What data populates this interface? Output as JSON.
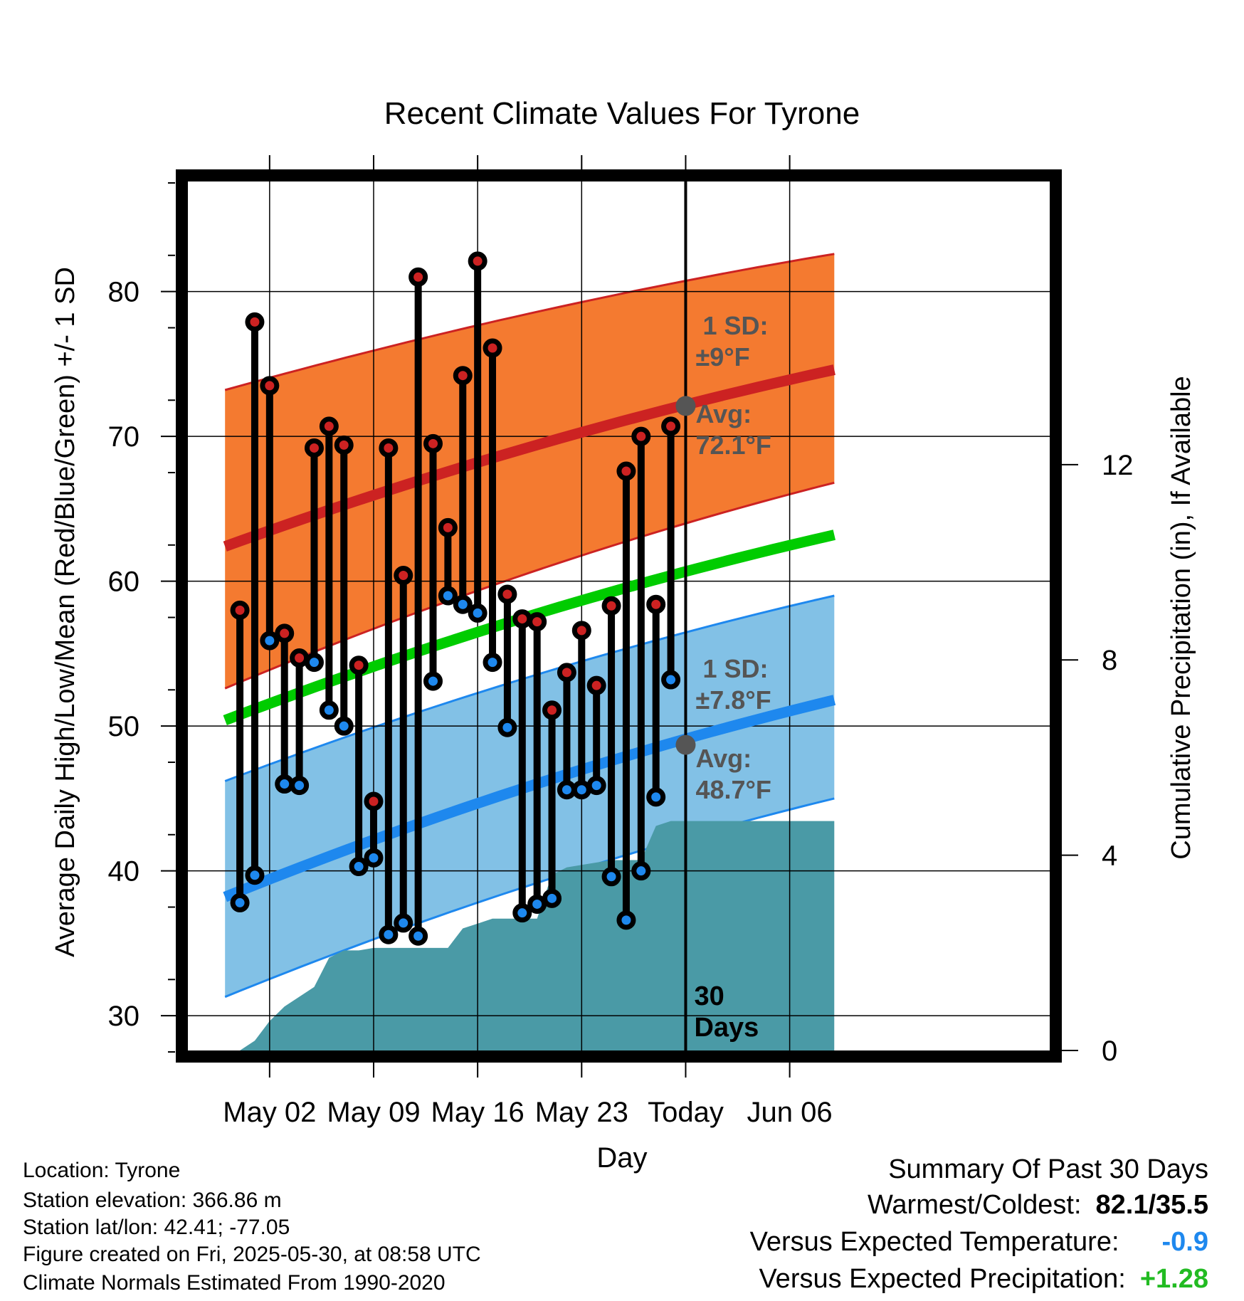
{
  "chart_data": {
    "type": "line",
    "title": "Recent Climate Values For Tyrone",
    "xlabel": "Day",
    "ylabel_left": "Average Daily High/Low/Mean (Red/Blue/Green) +/- 1 SD",
    "ylabel_right": "Cumulative Precipitation (in), If Available",
    "x_range": [
      -3.5,
      54.5
    ],
    "x_ticks": [
      {
        "day": 2,
        "label": "May 02"
      },
      {
        "day": 9,
        "label": "May 09"
      },
      {
        "day": 16,
        "label": "May 16"
      },
      {
        "day": 23,
        "label": "May 23"
      },
      {
        "day": 30,
        "label": "Today"
      },
      {
        "day": 37,
        "label": "Jun 06"
      }
    ],
    "y_left": {
      "min": 27.6,
      "max": 87.6,
      "ticks": [
        30,
        40,
        50,
        60,
        70,
        80
      ]
    },
    "y_right": {
      "min": 0,
      "max": 17.8,
      "ticks": [
        0,
        4,
        8,
        12
      ]
    },
    "today_day": 30,
    "days_label": "30\nDays",
    "normals": {
      "x_start": -1,
      "x_end": 40,
      "high_avg": [
        62.4,
        74.6
      ],
      "high_upper": [
        73.2,
        82.6
      ],
      "high_lower": [
        52.6,
        66.8
      ],
      "mean_avg": [
        50.4,
        63.2
      ],
      "low_avg": [
        38.2,
        51.8
      ],
      "low_upper": [
        46.2,
        59.0
      ],
      "low_lower": [
        31.3,
        45.0
      ]
    },
    "high_annotation": {
      "sd_label": "1 SD:",
      "sd_value": "±9°F",
      "avg_label": "Avg:",
      "avg_value": "72.1°F",
      "avg_marker": 72.1
    },
    "low_annotation": {
      "sd_label": "1 SD:",
      "sd_value": "±7.8°F",
      "avg_label": "Avg:",
      "avg_value": "48.7°F",
      "avg_marker": 48.7
    },
    "daily": [
      {
        "day": 0,
        "high": 58.0,
        "low": 37.8
      },
      {
        "day": 1,
        "high": 77.9,
        "low": 39.7
      },
      {
        "day": 2,
        "high": 73.5,
        "low": 55.9
      },
      {
        "day": 3,
        "high": 56.4,
        "low": 46.0
      },
      {
        "day": 4,
        "high": 54.7,
        "low": 45.9
      },
      {
        "day": 5,
        "high": 69.2,
        "low": 54.4
      },
      {
        "day": 6,
        "high": 70.7,
        "low": 51.1
      },
      {
        "day": 7,
        "high": 69.4,
        "low": 50.0
      },
      {
        "day": 8,
        "high": 54.2,
        "low": 40.3
      },
      {
        "day": 9,
        "high": 44.8,
        "low": 40.9
      },
      {
        "day": 10,
        "high": 69.2,
        "low": 35.6
      },
      {
        "day": 11,
        "high": 60.4,
        "low": 36.4
      },
      {
        "day": 12,
        "high": 81.0,
        "low": 35.5
      },
      {
        "day": 13,
        "high": 69.5,
        "low": 53.1
      },
      {
        "day": 14,
        "high": 63.7,
        "low": 59.0
      },
      {
        "day": 15,
        "high": 74.2,
        "low": 58.4
      },
      {
        "day": 16,
        "high": 82.1,
        "low": 57.8
      },
      {
        "day": 17,
        "high": 76.1,
        "low": 54.4
      },
      {
        "day": 18,
        "high": 59.1,
        "low": 49.9
      },
      {
        "day": 19,
        "high": 57.4,
        "low": 37.1
      },
      {
        "day": 20,
        "high": 57.2,
        "low": 37.7
      },
      {
        "day": 21,
        "high": 51.1,
        "low": 38.1
      },
      {
        "day": 22,
        "high": 53.7,
        "low": 45.6
      },
      {
        "day": 23,
        "high": 56.6,
        "low": 45.6
      },
      {
        "day": 24,
        "high": 52.8,
        "low": 45.9
      },
      {
        "day": 25,
        "high": 58.3,
        "low": 39.6
      },
      {
        "day": 26,
        "high": 67.6,
        "low": 36.6
      },
      {
        "day": 27,
        "high": 70.0,
        "low": 40.0
      },
      {
        "day": 28,
        "high": 58.4,
        "low": 45.1
      },
      {
        "day": 29,
        "high": 70.7,
        "low": 53.2
      }
    ],
    "precip_cumulative": {
      "x": [
        -1,
        0,
        1,
        2,
        3,
        4,
        5,
        6,
        7,
        8,
        9,
        10,
        11,
        12,
        13,
        14,
        15,
        16,
        17,
        18,
        19,
        20,
        21,
        22,
        23,
        24,
        25,
        26,
        27,
        28,
        29,
        30,
        40
      ],
      "values": [
        0,
        0,
        0.2,
        0.6,
        0.9,
        1.1,
        1.3,
        1.9,
        2.05,
        2.05,
        2.1,
        2.1,
        2.1,
        2.1,
        2.1,
        2.1,
        2.5,
        2.6,
        2.7,
        2.7,
        2.7,
        2.7,
        3.6,
        3.75,
        3.8,
        3.85,
        3.9,
        3.9,
        3.9,
        4.6,
        4.7,
        4.7,
        4.7
      ]
    },
    "colors": {
      "high_band": "#f47a30",
      "high_line": "#cc2222",
      "mean_line": "#00cc00",
      "low_band": "#82c1e6",
      "low_line": "#1e88ee",
      "precip": "#4a9aa6",
      "high_marker": "#cc2222",
      "low_marker": "#1e88ee",
      "annotation": "#555555"
    }
  },
  "station": {
    "location": "Location: Tyrone",
    "elevation": "Station elevation: 366.86 m",
    "latlon": "Station lat/lon: 42.41; -77.05",
    "created": "Figure created on Fri, 2025-05-30, at 08:58 UTC",
    "normals": "Climate Normals Estimated From 1990-2020"
  },
  "summary": {
    "title": "Summary Of Past 30 Days",
    "warm_cold_label": "Warmest/Coldest:",
    "warm_cold_value": "82.1/35.5",
    "temp_label": "Versus Expected Temperature:",
    "temp_value": "-0.9",
    "temp_color": "#1e88ee",
    "precip_label": "Versus Expected Precipitation:",
    "precip_value": "+1.28",
    "precip_color": "#22bb22"
  }
}
